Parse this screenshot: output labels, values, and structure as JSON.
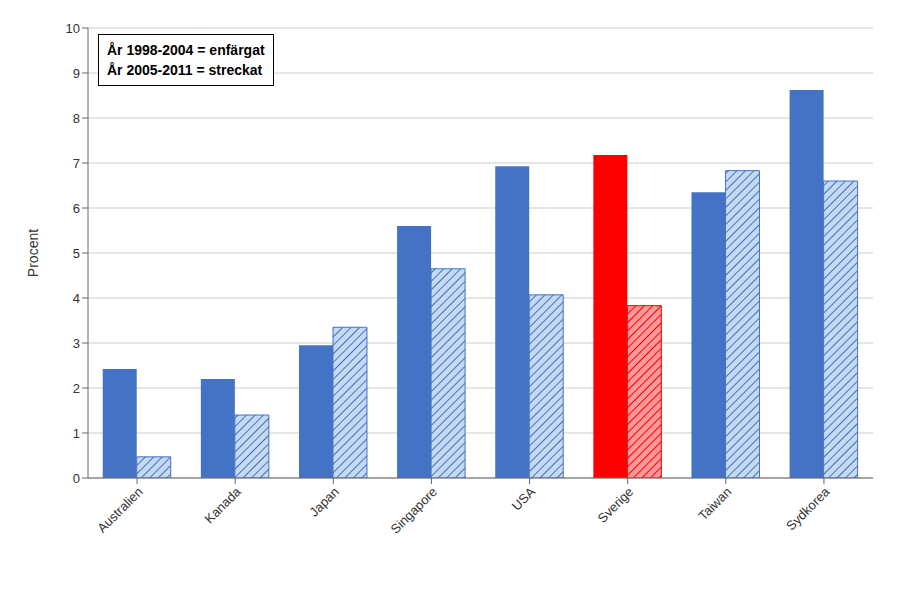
{
  "chart_data": {
    "type": "bar",
    "categories": [
      "Australien",
      "Kanada",
      "Japan",
      "Singapore",
      "USA",
      "Sverige",
      "Taiwan",
      "Sydkorea"
    ],
    "series": [
      {
        "values": [
          2.42,
          2.2,
          2.95,
          5.6,
          6.93,
          7.18,
          6.35,
          8.62
        ],
        "colors": [
          "#4472C4",
          "#4472C4",
          "#4472C4",
          "#4472C4",
          "#4472C4",
          "#FF0000",
          "#4472C4",
          "#4472C4"
        ]
      },
      {
        "values": [
          0.47,
          1.4,
          3.35,
          4.65,
          4.07,
          3.83,
          6.83,
          6.6
        ],
        "colors": [
          "#C5D9F1",
          "#C5D9F1",
          "#C5D9F1",
          "#C5D9F1",
          "#C5D9F1",
          "#FF9999",
          "#C5D9F1",
          "#C5D9F1"
        ]
      }
    ],
    "ylabel": "Procent",
    "ylim": [
      0,
      10
    ],
    "yticks": [
      0,
      1,
      2,
      3,
      4,
      5,
      6,
      7,
      8,
      9,
      10
    ],
    "grid": true,
    "annotations": [
      "År 1998-2004 = enfärgat",
      "År 2005-2011 = streckat"
    ]
  }
}
